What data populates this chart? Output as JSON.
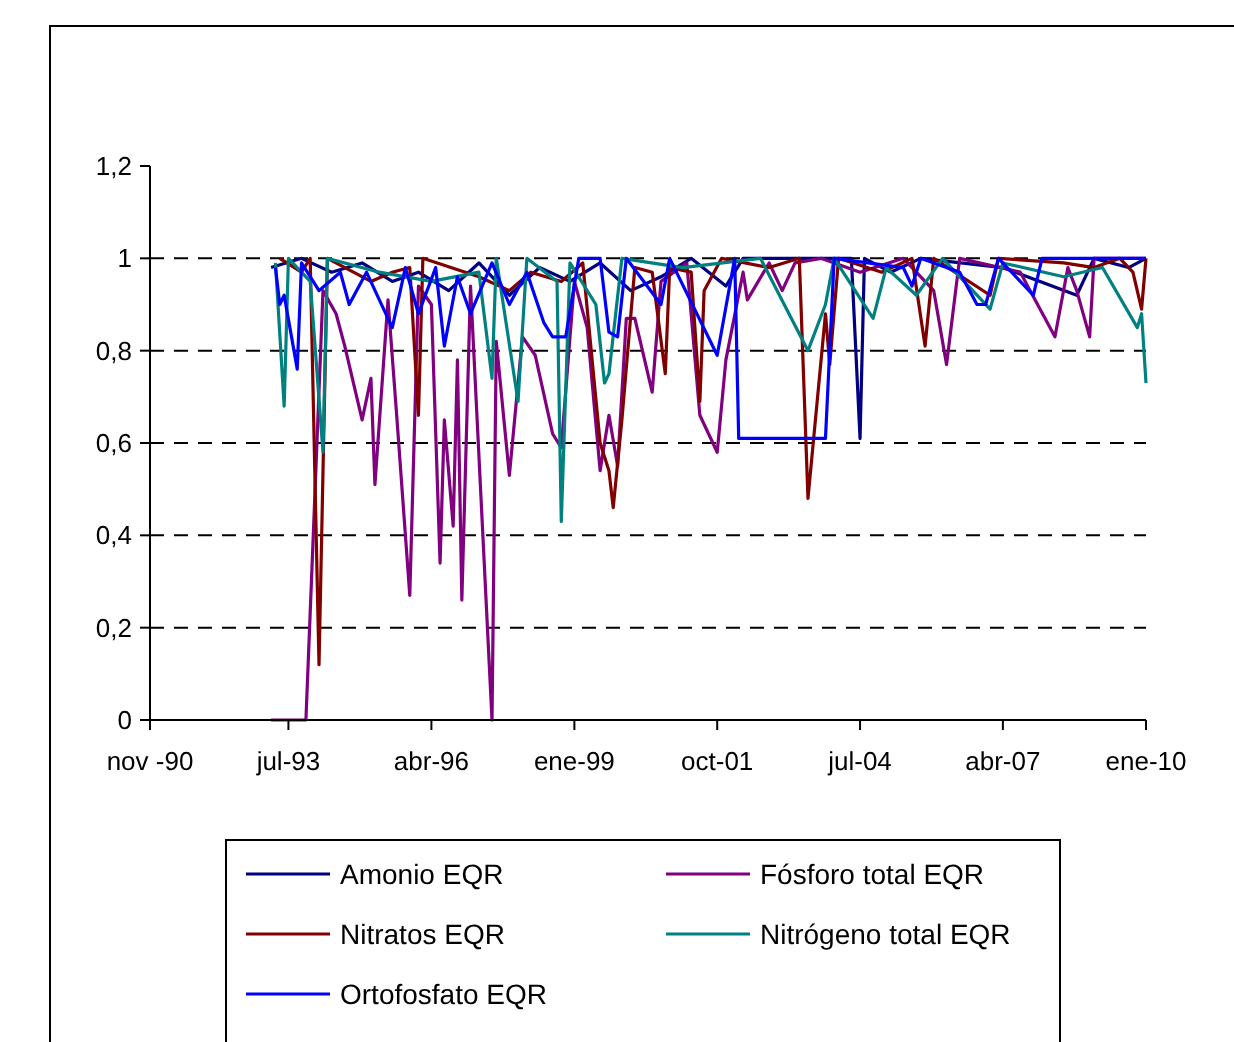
{
  "chart_data": {
    "type": "line",
    "xlim": [
      "1990-11",
      "2010-01"
    ],
    "xticks": [
      {
        "value": "1990-11",
        "label": "nov -90"
      },
      {
        "value": "1993-07",
        "label": "jul-93"
      },
      {
        "value": "1996-04",
        "label": "abr-96"
      },
      {
        "value": "1999-01",
        "label": "ene-99"
      },
      {
        "value": "2001-10",
        "label": "oct-01"
      },
      {
        "value": "2004-07",
        "label": "jul-04"
      },
      {
        "value": "2007-04",
        "label": "abr-07"
      },
      {
        "value": "2010-01",
        "label": "ene-10"
      }
    ],
    "ylim": [
      0,
      1.2
    ],
    "yticks": [
      0,
      {
        "value": 0.2,
        "label": "0,2"
      },
      {
        "value": 0.4,
        "label": "0,4"
      },
      {
        "value": 0.6,
        "label": "0,6"
      },
      {
        "value": 0.8,
        "label": "0,8"
      },
      1,
      {
        "value": 1.2,
        "label": "1,2"
      }
    ],
    "grid": "y",
    "legend": "bottom",
    "series": [
      {
        "name": "Amonio EQR",
        "color": "#000080",
        "x": [
          "1993-03",
          "1993-10",
          "1994-05",
          "1994-12",
          "1995-07",
          "1996-01",
          "1996-08",
          "1997-03",
          "1997-10",
          "1998-05",
          "1998-12",
          "1999-07",
          "2000-02",
          "2000-09",
          "2001-04",
          "2001-12",
          "2002-04",
          "2004-05",
          "2004-07",
          "2004-08",
          "2005-02",
          "2005-09",
          "2007-04",
          "2008-09",
          "2009-01",
          "2009-09",
          "2010-01"
        ],
        "values": [
          0.98,
          1,
          0.97,
          0.99,
          0.95,
          0.97,
          0.93,
          0.99,
          0.92,
          0.98,
          0.95,
          0.99,
          0.93,
          0.96,
          1,
          0.94,
          1,
          1,
          0.61,
          1,
          0.97,
          1,
          0.98,
          0.92,
          1,
          0.98,
          1
        ]
      },
      {
        "name": "Fósforo total EQR",
        "color": "#800080",
        "x": [
          "1993-03",
          "1993-11",
          "1994-03",
          "1994-06",
          "1994-08",
          "1994-12",
          "1995-02",
          "1995-03",
          "1995-06",
          "1995-08",
          "1995-11",
          "1996-01",
          "1996-04",
          "1996-06",
          "1996-07",
          "1996-09",
          "1996-10",
          "1996-11",
          "1997-01",
          "1997-06",
          "1997-07",
          "1997-10",
          "1998-01",
          "1998-04",
          "1998-08",
          "1998-10",
          "1999-01",
          "1999-04",
          "1999-07",
          "1999-09",
          "1999-11",
          "2000-01",
          "2000-03",
          "2000-07",
          "2000-09",
          "2000-12",
          "2001-03",
          "2001-06",
          "2001-08",
          "2001-10",
          "2001-12",
          "2002-04",
          "2002-05",
          "2002-10",
          "2003-01",
          "2003-04",
          "2003-10",
          "2004-07",
          "2005-05",
          "2005-12",
          "2006-03",
          "2006-06",
          "2007-08",
          "2008-04",
          "2008-07",
          "2008-09",
          "2008-12",
          "2009-01",
          "2010-01"
        ],
        "values": [
          0,
          0,
          0.93,
          0.88,
          0.81,
          0.65,
          0.74,
          0.51,
          0.91,
          0.66,
          0.27,
          0.94,
          0.9,
          0.34,
          0.65,
          0.42,
          0.78,
          0.26,
          0.94,
          0,
          0.82,
          0.53,
          0.83,
          0.79,
          0.62,
          0.59,
          0.95,
          0.85,
          0.54,
          0.66,
          0.55,
          0.87,
          0.87,
          0.71,
          0.95,
          0.97,
          0.99,
          0.66,
          0.62,
          0.58,
          0.78,
          0.97,
          0.91,
          0.99,
          0.93,
          0.99,
          1,
          0.97,
          1,
          0.93,
          0.77,
          1,
          0.97,
          0.83,
          0.98,
          0.93,
          0.83,
          1,
          1
        ]
      },
      {
        "name": "Nitratos EQR",
        "color": "#800000",
        "x": [
          "1993-05",
          "1993-10",
          "1993-12",
          "1994-02",
          "1994-04",
          "1995-02",
          "1995-07",
          "1995-11",
          "1996-01",
          "1996-02",
          "1997-03",
          "1997-10",
          "1998-03",
          "1998-10",
          "1999-03",
          "1999-07",
          "1999-09",
          "1999-10",
          "1999-12",
          "2000-03",
          "2000-07",
          "2000-10",
          "2000-11",
          "2001-04",
          "2001-06",
          "2001-07",
          "2001-11",
          "2002-10",
          "2003-05",
          "2003-07",
          "2003-11",
          "2003-12",
          "2004-02",
          "2004-12",
          "2005-07",
          "2005-10",
          "2005-12",
          "2007-01",
          "2007-03",
          "2008-06",
          "2009-01",
          "2009-07",
          "2009-10",
          "2009-12",
          "2010-01"
        ],
        "values": [
          1,
          0.97,
          1,
          0.12,
          1,
          0.95,
          0.97,
          0.98,
          0.66,
          1,
          0.96,
          0.93,
          0.97,
          0.95,
          0.99,
          0.6,
          0.54,
          0.46,
          0.65,
          0.98,
          0.97,
          0.75,
          0.98,
          0.97,
          0.69,
          0.93,
          1,
          0.98,
          1,
          0.48,
          0.88,
          0.77,
          1,
          0.97,
          1,
          0.81,
          1,
          0.92,
          1,
          0.99,
          0.98,
          1,
          0.97,
          0.89,
          1
        ]
      },
      {
        "name": "Nitrógeno total EQR",
        "color": "#008080",
        "x": [
          "1993-04",
          "1993-06",
          "1993-07",
          "1993-12",
          "1994-03",
          "1994-04",
          "1995-04",
          "1996-04",
          "1997-03",
          "1997-06",
          "1997-07",
          "1997-12",
          "1998-02",
          "1998-09",
          "1998-10",
          "1998-12",
          "1999-06",
          "1999-08",
          "1999-09",
          "1999-12",
          "2001-02",
          "2002-08",
          "2003-07",
          "2003-11",
          "2004-01",
          "2004-10",
          "2005-01",
          "2005-08",
          "2006-02",
          "2007-01",
          "2007-04",
          "2008-06",
          "2009-03",
          "2009-11",
          "2009-12",
          "2010-01"
        ],
        "values": [
          0.99,
          0.68,
          1,
          0.95,
          0.58,
          1,
          0.97,
          0.95,
          0.97,
          0.74,
          1,
          0.69,
          1,
          0.95,
          0.43,
          0.99,
          0.9,
          0.73,
          0.75,
          1,
          0.98,
          1,
          0.8,
          0.9,
          1,
          0.87,
          0.98,
          0.92,
          1,
          0.89,
          0.99,
          0.96,
          0.98,
          0.85,
          0.88,
          0.73
        ]
      },
      {
        "name": "Ortofosfato EQR",
        "color": "#0000ff",
        "x": [
          "1993-04",
          "1993-05",
          "1993-06",
          "1993-09",
          "1993-10",
          "1994-02",
          "1994-07",
          "1994-09",
          "1995-01",
          "1995-04",
          "1995-07",
          "1995-10",
          "1996-01",
          "1996-05",
          "1996-07",
          "1996-10",
          "1997-01",
          "1997-06",
          "1997-10",
          "1998-02",
          "1998-06",
          "1998-08",
          "1998-11",
          "1999-02",
          "1999-07",
          "1999-09",
          "1999-11",
          "2000-01",
          "2000-09",
          "2000-11",
          "2001-10",
          "2002-02",
          "2002-03",
          "2003-11",
          "2004-01",
          "2005-05",
          "2005-07",
          "2005-09",
          "2006-06",
          "2006-10",
          "2006-12",
          "2007-03",
          "2007-11",
          "2008-01",
          "2010-01"
        ],
        "values": [
          0.98,
          0.9,
          0.92,
          0.76,
          0.99,
          0.93,
          0.97,
          0.9,
          0.97,
          0.91,
          0.85,
          0.98,
          0.88,
          0.98,
          0.81,
          0.96,
          0.88,
          0.99,
          0.9,
          0.97,
          0.86,
          0.83,
          0.83,
          1,
          1,
          0.84,
          0.83,
          1,
          0.9,
          1,
          0.79,
          1,
          0.61,
          0.61,
          1,
          0.98,
          0.94,
          1,
          0.97,
          0.9,
          0.9,
          1,
          0.92,
          1,
          1
        ]
      }
    ]
  }
}
